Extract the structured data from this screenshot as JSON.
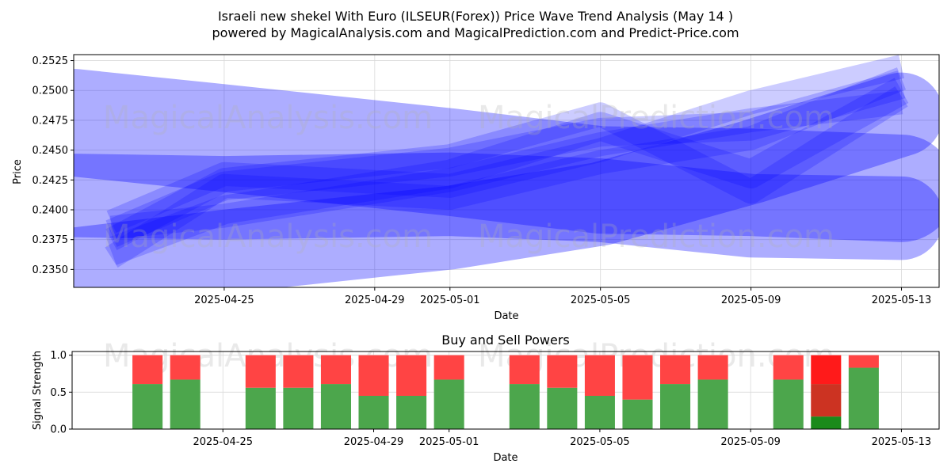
{
  "title_line1": "Israeli new shekel With Euro (ILSEUR(Forex)) Price Wave Trend Analysis (May 14 )",
  "title_line2": "powered by MagicalAnalysis.com and MagicalPrediction.com and Predict-Price.com",
  "watermarks": [
    "MagicalAnalysis.com",
    "MagicalPrediction.com"
  ],
  "colors": {
    "wave": "#0000ff",
    "buy": "#4ca64c",
    "sell": "#ff4444",
    "buy_strong": "#1a8a1a",
    "sell_strong": "#ff1a1a",
    "mid_strong": "#cc3322"
  },
  "chart_data": [
    {
      "type": "area",
      "xlabel": "Date",
      "ylabel": "Price",
      "ylim": [
        0.2335,
        0.253
      ],
      "xlim": [
        "2025-04-21",
        "2025-05-14"
      ],
      "grid": true,
      "y_ticks": [
        "0.2350",
        "0.2375",
        "0.2400",
        "0.2425",
        "0.2450",
        "0.2475",
        "0.2500",
        "0.2525"
      ],
      "x_ticks": [
        "2025-04-25",
        "2025-04-29",
        "2025-05-01",
        "2025-05-05",
        "2025-05-09",
        "2025-05-13"
      ],
      "series": [
        {
          "x": [
            "2025-04-21",
            "2025-04-25",
            "2025-05-01",
            "2025-05-05",
            "2025-05-09",
            "2025-05-13"
          ],
          "y": [
            0.2473,
            0.246,
            0.244,
            0.2425,
            0.2423,
            0.2418
          ],
          "band": 0.0045
        },
        {
          "x": [
            "2025-04-21",
            "2025-04-25",
            "2025-05-01",
            "2025-05-05",
            "2025-05-09",
            "2025-05-13"
          ],
          "y": [
            0.2412,
            0.241,
            0.2413,
            0.2408,
            0.2395,
            0.2393
          ],
          "band": 0.0035
        },
        {
          "x": [
            "2025-04-21",
            "2025-04-25",
            "2025-05-01",
            "2025-05-05",
            "2025-05-09",
            "2025-05-13"
          ],
          "y": [
            0.235,
            0.2365,
            0.2385,
            0.2405,
            0.244,
            0.248
          ],
          "band": 0.0035
        },
        {
          "x": [
            "2025-04-22",
            "2025-04-25",
            "2025-05-01",
            "2025-05-05",
            "2025-05-09",
            "2025-05-13"
          ],
          "y": [
            0.238,
            0.242,
            0.244,
            0.2465,
            0.247,
            0.2505
          ],
          "band": 0.0012
        },
        {
          "x": [
            "2025-04-22",
            "2025-04-25",
            "2025-05-01",
            "2025-05-05",
            "2025-05-09",
            "2025-05-13"
          ],
          "y": [
            0.239,
            0.243,
            0.242,
            0.245,
            0.249,
            0.252
          ],
          "band": 0.001
        },
        {
          "x": [
            "2025-04-22",
            "2025-04-25",
            "2025-05-01",
            "2025-05-05",
            "2025-05-09",
            "2025-05-13"
          ],
          "y": [
            0.2365,
            0.24,
            0.243,
            0.247,
            0.243,
            0.25
          ],
          "band": 0.0012
        },
        {
          "x": [
            "2025-04-22",
            "2025-04-25",
            "2025-05-01",
            "2025-05-05",
            "2025-05-09",
            "2025-05-13"
          ],
          "y": [
            0.236,
            0.242,
            0.241,
            0.244,
            0.246,
            0.251
          ],
          "band": 0.001
        },
        {
          "x": [
            "2025-04-22",
            "2025-04-25",
            "2025-05-01",
            "2025-05-05",
            "2025-05-09",
            "2025-05-13"
          ],
          "y": [
            0.2375,
            0.2425,
            0.2445,
            0.248,
            0.2415,
            0.2495
          ],
          "band": 0.001
        },
        {
          "x": [
            "2025-04-22",
            "2025-04-25",
            "2025-05-01",
            "2025-05-05",
            "2025-05-09",
            "2025-05-13"
          ],
          "y": [
            0.2385,
            0.2395,
            0.2425,
            0.2455,
            0.2475,
            0.249
          ],
          "band": 0.001
        }
      ]
    },
    {
      "type": "bar",
      "title": "Buy and Sell Powers",
      "xlabel": "Date",
      "ylabel": "Signal Strength",
      "ylim": [
        0,
        1.05
      ],
      "y_ticks": [
        "0.0",
        "0.5",
        "1.0"
      ],
      "x_ticks": [
        "2025-04-25",
        "2025-04-29",
        "2025-05-01",
        "2025-05-05",
        "2025-05-09",
        "2025-05-13"
      ],
      "x": [
        "2025-04-23",
        "2025-04-24",
        "2025-04-26",
        "2025-04-27",
        "2025-04-28",
        "2025-04-29",
        "2025-04-30",
        "2025-05-01",
        "2025-05-03",
        "2025-05-04",
        "2025-05-05",
        "2025-05-06",
        "2025-05-07",
        "2025-05-08",
        "2025-05-10",
        "2025-05-11",
        "2025-05-12"
      ],
      "buy": [
        0.61,
        0.67,
        0.56,
        0.56,
        0.61,
        0.45,
        0.45,
        0.67,
        0.61,
        0.56,
        0.45,
        0.4,
        0.61,
        0.67,
        0.67,
        0.17,
        0.83
      ],
      "sell": [
        0.39,
        0.33,
        0.44,
        0.44,
        0.39,
        0.55,
        0.55,
        0.33,
        0.39,
        0.44,
        0.55,
        0.6,
        0.39,
        0.33,
        0.33,
        0.83,
        0.17
      ],
      "highlight_index": 15,
      "highlight_mid": 0.61
    }
  ]
}
